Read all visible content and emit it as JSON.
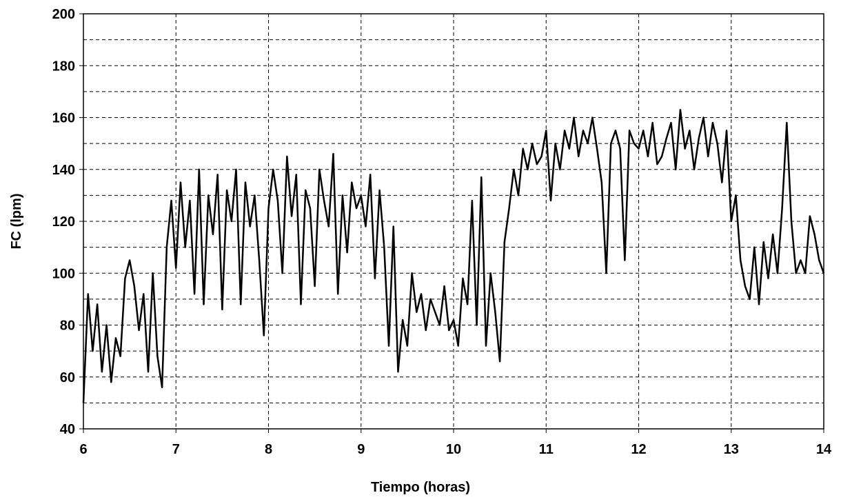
{
  "chart_data": {
    "type": "line",
    "xlabel": "Tiempo (horas)",
    "ylabel": "FC (lpm)",
    "xlim": [
      6,
      14
    ],
    "xticks": [
      6,
      7,
      8,
      9,
      10,
      11,
      12,
      13,
      14
    ],
    "ylim": [
      40,
      200
    ],
    "yticks": [
      40,
      60,
      80,
      100,
      120,
      140,
      160,
      180,
      200
    ],
    "yminor": [
      50,
      70,
      90,
      110,
      130,
      150,
      170,
      190
    ],
    "grid": true,
    "x": [
      6.0,
      6.05,
      6.1,
      6.15,
      6.2,
      6.25,
      6.3,
      6.35,
      6.4,
      6.45,
      6.5,
      6.55,
      6.6,
      6.65,
      6.7,
      6.75,
      6.8,
      6.85,
      6.9,
      6.95,
      7.0,
      7.05,
      7.1,
      7.15,
      7.2,
      7.25,
      7.3,
      7.35,
      7.4,
      7.45,
      7.5,
      7.55,
      7.6,
      7.65,
      7.7,
      7.75,
      7.8,
      7.85,
      7.9,
      7.95,
      8.0,
      8.05,
      8.1,
      8.15,
      8.2,
      8.25,
      8.3,
      8.35,
      8.4,
      8.45,
      8.5,
      8.55,
      8.6,
      8.65,
      8.7,
      8.75,
      8.8,
      8.85,
      8.9,
      8.95,
      9.0,
      9.05,
      9.1,
      9.15,
      9.2,
      9.25,
      9.3,
      9.35,
      9.4,
      9.45,
      9.5,
      9.55,
      9.6,
      9.65,
      9.7,
      9.75,
      9.8,
      9.85,
      9.9,
      9.95,
      10.0,
      10.05,
      10.1,
      10.15,
      10.2,
      10.25,
      10.3,
      10.35,
      10.4,
      10.45,
      10.5,
      10.55,
      10.6,
      10.65,
      10.7,
      10.75,
      10.8,
      10.85,
      10.9,
      10.95,
      11.0,
      11.05,
      11.1,
      11.15,
      11.2,
      11.25,
      11.3,
      11.35,
      11.4,
      11.45,
      11.5,
      11.55,
      11.6,
      11.65,
      11.7,
      11.75,
      11.8,
      11.85,
      11.9,
      11.95,
      12.0,
      12.05,
      12.1,
      12.15,
      12.2,
      12.25,
      12.3,
      12.35,
      12.4,
      12.45,
      12.5,
      12.55,
      12.6,
      12.65,
      12.7,
      12.75,
      12.8,
      12.85,
      12.9,
      12.95,
      13.0,
      13.05,
      13.1,
      13.15,
      13.2,
      13.25,
      13.3,
      13.35,
      13.4,
      13.45,
      13.5,
      13.55,
      13.6,
      13.65,
      13.7,
      13.75,
      13.8,
      13.85,
      13.9,
      13.95,
      14.0
    ],
    "series": [
      {
        "color": "#000000",
        "values": [
          50,
          92,
          70,
          88,
          62,
          80,
          58,
          75,
          68,
          98,
          105,
          95,
          78,
          92,
          62,
          100,
          68,
          56,
          110,
          128,
          102,
          135,
          110,
          128,
          92,
          140,
          88,
          130,
          115,
          138,
          86,
          132,
          120,
          140,
          88,
          135,
          118,
          130,
          105,
          76,
          125,
          140,
          128,
          100,
          145,
          122,
          138,
          88,
          132,
          125,
          95,
          140,
          128,
          118,
          146,
          92,
          130,
          108,
          135,
          125,
          130,
          118,
          138,
          98,
          132,
          110,
          72,
          118,
          62,
          82,
          72,
          100,
          85,
          92,
          78,
          90,
          85,
          80,
          95,
          78,
          82,
          72,
          98,
          88,
          128,
          80,
          137,
          72,
          100,
          85,
          66,
          112,
          125,
          140,
          130,
          148,
          140,
          150,
          142,
          145,
          155,
          128,
          150,
          140,
          155,
          148,
          160,
          145,
          155,
          150,
          160,
          148,
          135,
          100,
          150,
          155,
          148,
          105,
          155,
          150,
          148,
          155,
          145,
          158,
          142,
          145,
          152,
          158,
          140,
          163,
          148,
          155,
          140,
          152,
          160,
          145,
          158,
          150,
          135,
          155,
          120,
          130,
          105,
          95,
          90,
          110,
          88,
          112,
          98,
          115,
          100,
          125,
          158,
          120,
          100,
          105,
          100,
          122,
          115,
          105,
          100
        ]
      }
    ]
  }
}
